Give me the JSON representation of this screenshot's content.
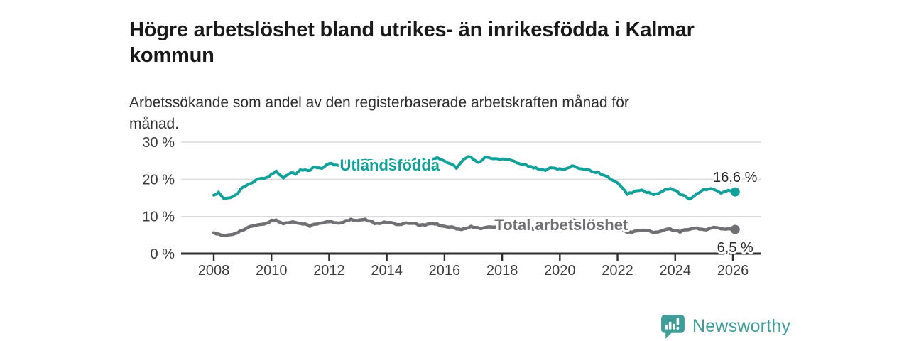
{
  "header": {
    "title_line1": "Högre arbetslöshet bland utrikes- än inrikesfödda i Kalmar",
    "title_line2": "kommun",
    "subtitle_line1": "Arbetssökande som andel av den registerbaserade arbetskraften månad för",
    "subtitle_line2": "månad."
  },
  "footer": {
    "brand": "Newsworthy",
    "logo_icon": "newsworthy-chart-bubble-icon",
    "brand_color": "#3f9e99"
  },
  "chart_data": {
    "type": "line",
    "title": "Högre arbetslöshet bland utrikes- än inrikesfödda i Kalmar kommun",
    "subtitle": "Arbetssökande som andel av den registerbaserade arbetskraften månad för månad.",
    "unit": "percent",
    "xlabel": "",
    "ylabel": "",
    "x_range": [
      2006.9,
      2027.0
    ],
    "ylim": [
      0,
      30
    ],
    "grid": "horizontal-light",
    "legend_position": "inline-labels",
    "x_ticks": [
      2008,
      2010,
      2012,
      2014,
      2016,
      2018,
      2020,
      2022,
      2024,
      2026
    ],
    "y_ticks": [
      {
        "value": 0,
        "label": "0 %"
      },
      {
        "value": 10,
        "label": "10 %"
      },
      {
        "value": 20,
        "label": "20 %"
      },
      {
        "value": 30,
        "label": "30 %"
      }
    ],
    "colors": {
      "foreign_born": "#12a19a",
      "total": "#6f6f74",
      "axis": "#2e2e2e",
      "gridline": "#dadada",
      "tick_text": "#3c3c3c",
      "value_text": "#2a2a2a"
    },
    "series": [
      {
        "name": "Utlandsfödda",
        "color": "#12a19a",
        "stroke_width": 4,
        "end_label": "16,6 %",
        "end_value": 16.6,
        "label_pos": {
          "x": 2014.1,
          "y": 23.7
        },
        "end_label_offset": -14,
        "wiggle": 0.26,
        "points": [
          [
            2008.0,
            15.7
          ],
          [
            2008.17,
            16.4
          ],
          [
            2008.33,
            14.7
          ],
          [
            2008.58,
            15.1
          ],
          [
            2008.83,
            16.3
          ],
          [
            2009.0,
            17.9
          ],
          [
            2009.25,
            18.6
          ],
          [
            2009.5,
            19.9
          ],
          [
            2009.75,
            20.3
          ],
          [
            2010.0,
            21.2
          ],
          [
            2010.17,
            22.2
          ],
          [
            2010.42,
            20.3
          ],
          [
            2010.67,
            21.9
          ],
          [
            2010.83,
            21.4
          ],
          [
            2011.0,
            22.8
          ],
          [
            2011.25,
            22.3
          ],
          [
            2011.5,
            23.2
          ],
          [
            2011.75,
            22.9
          ],
          [
            2012.0,
            24.3
          ],
          [
            2012.33,
            23.7
          ],
          [
            2012.58,
            24.6
          ],
          [
            2012.83,
            24.1
          ],
          [
            2013.08,
            24.9
          ],
          [
            2013.33,
            25.1
          ],
          [
            2013.58,
            24.5
          ],
          [
            2013.83,
            24.9
          ],
          [
            2014.08,
            25.2
          ],
          [
            2014.33,
            24.7
          ],
          [
            2014.58,
            25.1
          ],
          [
            2014.83,
            24.9
          ],
          [
            2015.08,
            25.4
          ],
          [
            2015.33,
            25.1
          ],
          [
            2015.58,
            25.6
          ],
          [
            2015.83,
            25.7
          ],
          [
            2016.0,
            25.0
          ],
          [
            2016.17,
            24.4
          ],
          [
            2016.42,
            23.1
          ],
          [
            2016.67,
            25.3
          ],
          [
            2016.83,
            26.2
          ],
          [
            2017.0,
            25.4
          ],
          [
            2017.17,
            24.4
          ],
          [
            2017.42,
            26.0
          ],
          [
            2017.58,
            25.7
          ],
          [
            2017.83,
            25.4
          ],
          [
            2018.08,
            25.6
          ],
          [
            2018.33,
            25.2
          ],
          [
            2018.58,
            24.3
          ],
          [
            2018.83,
            23.8
          ],
          [
            2019.08,
            23.1
          ],
          [
            2019.42,
            22.4
          ],
          [
            2019.75,
            23.3
          ],
          [
            2020.08,
            22.5
          ],
          [
            2020.42,
            23.4
          ],
          [
            2020.75,
            23.0
          ],
          [
            2021.08,
            22.4
          ],
          [
            2021.42,
            21.5
          ],
          [
            2021.75,
            20.2
          ],
          [
            2022.0,
            18.9
          ],
          [
            2022.33,
            16.1
          ],
          [
            2022.58,
            16.7
          ],
          [
            2022.83,
            17.0
          ],
          [
            2023.08,
            16.4
          ],
          [
            2023.33,
            15.8
          ],
          [
            2023.67,
            17.2
          ],
          [
            2023.92,
            17.4
          ],
          [
            2024.25,
            15.6
          ],
          [
            2024.5,
            14.9
          ],
          [
            2024.75,
            15.9
          ],
          [
            2025.0,
            17.3
          ],
          [
            2025.25,
            17.5
          ],
          [
            2025.58,
            16.3
          ],
          [
            2025.83,
            16.9
          ],
          [
            2026.08,
            16.6
          ]
        ]
      },
      {
        "name": "Total arbetslöshet",
        "color": "#6f6f74",
        "stroke_width": 4.5,
        "end_label": "6,5 %",
        "end_value": 6.5,
        "label_pos": {
          "x": 2020.05,
          "y": 7.65
        },
        "end_label_offset": 25,
        "wiggle": 0.2,
        "points": [
          [
            2008.0,
            5.6
          ],
          [
            2008.33,
            4.7
          ],
          [
            2008.67,
            5.3
          ],
          [
            2009.0,
            6.3
          ],
          [
            2009.33,
            7.4
          ],
          [
            2009.67,
            7.8
          ],
          [
            2010.0,
            8.8
          ],
          [
            2010.17,
            9.0
          ],
          [
            2010.42,
            8.0
          ],
          [
            2010.67,
            8.5
          ],
          [
            2011.0,
            8.3
          ],
          [
            2011.33,
            7.5
          ],
          [
            2011.67,
            8.1
          ],
          [
            2012.0,
            8.6
          ],
          [
            2012.33,
            8.2
          ],
          [
            2012.75,
            9.1
          ],
          [
            2013.0,
            8.8
          ],
          [
            2013.25,
            9.2
          ],
          [
            2013.58,
            8.1
          ],
          [
            2014.0,
            8.5
          ],
          [
            2014.42,
            7.7
          ],
          [
            2014.83,
            8.3
          ],
          [
            2015.25,
            7.6
          ],
          [
            2015.58,
            8.2
          ],
          [
            2015.92,
            7.5
          ],
          [
            2016.25,
            7.1
          ],
          [
            2016.58,
            6.4
          ],
          [
            2016.92,
            7.2
          ],
          [
            2017.25,
            6.8
          ],
          [
            2017.58,
            7.2
          ],
          [
            2017.92,
            7.0
          ],
          [
            2018.33,
            6.9
          ],
          [
            2018.75,
            6.7
          ],
          [
            2019.08,
            6.6
          ],
          [
            2019.5,
            6.9
          ],
          [
            2019.83,
            7.1
          ],
          [
            2020.17,
            8.2
          ],
          [
            2020.42,
            8.9
          ],
          [
            2020.75,
            8.5
          ],
          [
            2021.08,
            7.8
          ],
          [
            2021.5,
            7.1
          ],
          [
            2021.83,
            6.6
          ],
          [
            2022.17,
            6.1
          ],
          [
            2022.42,
            5.8
          ],
          [
            2022.75,
            6.1
          ],
          [
            2023.0,
            6.3
          ],
          [
            2023.33,
            5.6
          ],
          [
            2023.75,
            6.6
          ],
          [
            2024.17,
            5.9
          ],
          [
            2024.58,
            6.9
          ],
          [
            2025.0,
            6.4
          ],
          [
            2025.33,
            7.0
          ],
          [
            2025.67,
            6.6
          ],
          [
            2026.08,
            6.5
          ]
        ]
      }
    ]
  }
}
